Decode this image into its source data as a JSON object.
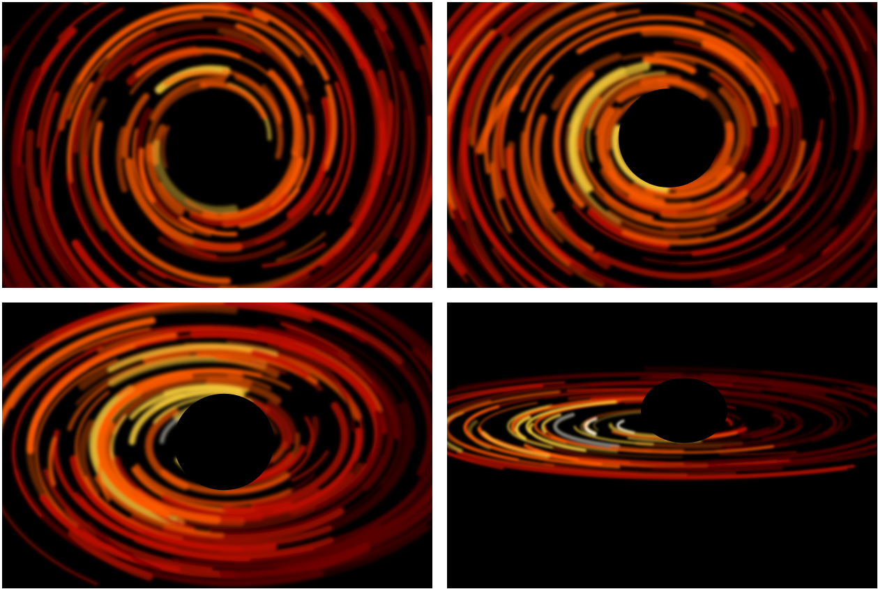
{
  "figure": {
    "panels": [
      {
        "id": "a",
        "inclination_deg": 0
      },
      {
        "id": "b",
        "inclination_deg": 30
      },
      {
        "id": "c",
        "inclination_deg": 60
      },
      {
        "id": "d",
        "inclination_deg": 85
      }
    ],
    "colormap": "hot",
    "colors": {
      "background": "#000000",
      "dim": "#5a0000",
      "mid": "#c01000",
      "bright": "#ff5a00",
      "hot": "#ffd23c",
      "peak": "#fffbe6"
    }
  }
}
